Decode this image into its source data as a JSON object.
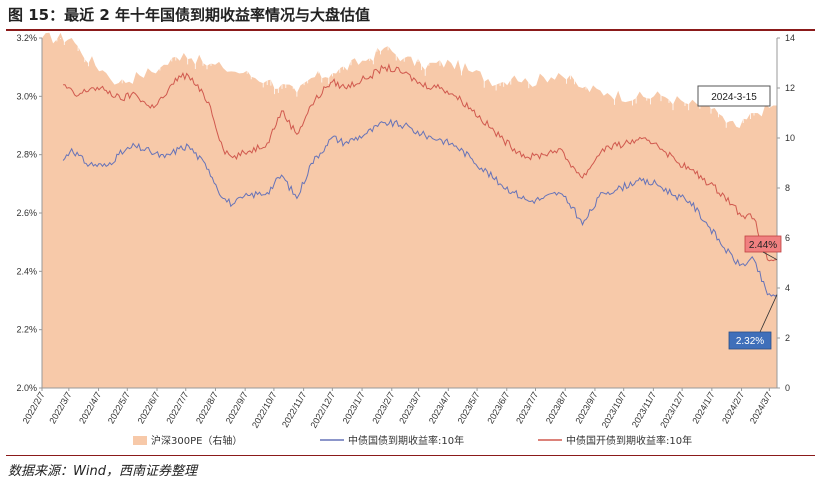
{
  "figure": {
    "title": "图 15：最近 2 年十年国债到期收益率情况与大盘估值",
    "source": "数据来源：Wind，西南证券整理"
  },
  "chart_data": {
    "type": "area+line",
    "x_range": [
      "2022-02-07",
      "2024-03-15"
    ],
    "x_tick_labels": [
      "2022/2/7",
      "2022/3/7",
      "2022/4/7",
      "2022/5/7",
      "2022/6/7",
      "2022/7/7",
      "2022/8/7",
      "2022/9/7",
      "2022/10/7",
      "2022/11/7",
      "2022/12/7",
      "2023/1/7",
      "2023/2/7",
      "2023/3/7",
      "2023/4/7",
      "2023/5/7",
      "2023/6/7",
      "2023/7/7",
      "2023/8/7",
      "2023/9/7",
      "2023/10/7",
      "2023/11/7",
      "2023/12/7",
      "2024/1/7",
      "2024/2/7",
      "2024/3/7"
    ],
    "y_left": {
      "min": 2.0,
      "max": 3.2,
      "tick_labels": [
        "2.0%",
        "2.2%",
        "2.4%",
        "2.6%",
        "2.8%",
        "3.0%",
        "3.2%"
      ]
    },
    "y_right": {
      "min": 0,
      "max": 14,
      "tick_labels": [
        "0",
        "2",
        "4",
        "6",
        "8",
        "10",
        "12",
        "14"
      ]
    },
    "series": [
      {
        "name": "沪深300PE（右轴）",
        "kind": "area",
        "axis": "right",
        "color": "#f7c9a9",
        "points": [
          [
            "2022-02-07",
            14.0
          ],
          [
            "2022-03-10",
            14.0
          ],
          [
            "2022-03-20",
            13.4
          ],
          [
            "2022-04-15",
            12.6
          ],
          [
            "2022-04-28",
            12.2
          ],
          [
            "2022-05-20",
            12.5
          ],
          [
            "2022-06-10",
            12.8
          ],
          [
            "2022-07-05",
            13.4
          ],
          [
            "2022-07-25",
            13.0
          ],
          [
            "2022-08-15",
            12.8
          ],
          [
            "2022-09-05",
            12.6
          ],
          [
            "2022-09-30",
            12.3
          ],
          [
            "2022-10-31",
            11.8
          ],
          [
            "2022-11-15",
            12.4
          ],
          [
            "2022-12-07",
            12.6
          ],
          [
            "2023-01-15",
            13.2
          ],
          [
            "2023-01-30",
            13.6
          ],
          [
            "2023-02-20",
            13.2
          ],
          [
            "2023-03-10",
            12.9
          ],
          [
            "2023-04-10",
            13.0
          ],
          [
            "2023-04-28",
            12.7
          ],
          [
            "2023-05-31",
            12.2
          ],
          [
            "2023-06-15",
            12.5
          ],
          [
            "2023-06-30",
            12.2
          ],
          [
            "2023-07-31",
            12.6
          ],
          [
            "2023-08-25",
            12.0
          ],
          [
            "2023-09-20",
            11.8
          ],
          [
            "2023-10-20",
            11.6
          ],
          [
            "2023-11-15",
            11.7
          ],
          [
            "2023-12-10",
            11.4
          ],
          [
            "2024-01-10",
            11.2
          ],
          [
            "2024-01-22",
            10.6
          ],
          [
            "2024-02-05",
            10.4
          ],
          [
            "2024-02-20",
            11.0
          ],
          [
            "2024-03-15",
            11.3
          ]
        ]
      },
      {
        "name": "中债国债到期收益率:10年",
        "kind": "line",
        "axis": "left",
        "color": "#6673b8",
        "points": [
          [
            "2022-03-01",
            2.78
          ],
          [
            "2022-03-10",
            2.82
          ],
          [
            "2022-03-25",
            2.77
          ],
          [
            "2022-04-15",
            2.76
          ],
          [
            "2022-04-28",
            2.8
          ],
          [
            "2022-05-15",
            2.83
          ],
          [
            "2022-05-31",
            2.81
          ],
          [
            "2022-06-15",
            2.79
          ],
          [
            "2022-06-30",
            2.82
          ],
          [
            "2022-07-10",
            2.83
          ],
          [
            "2022-07-31",
            2.75
          ],
          [
            "2022-08-15",
            2.65
          ],
          [
            "2022-08-25",
            2.63
          ],
          [
            "2022-09-10",
            2.66
          ],
          [
            "2022-09-30",
            2.67
          ],
          [
            "2022-10-15",
            2.73
          ],
          [
            "2022-10-31",
            2.65
          ],
          [
            "2022-11-15",
            2.77
          ],
          [
            "2022-11-30",
            2.83
          ],
          [
            "2022-12-07",
            2.86
          ],
          [
            "2022-12-20",
            2.84
          ],
          [
            "2023-01-10",
            2.87
          ],
          [
            "2023-01-31",
            2.91
          ],
          [
            "2023-02-20",
            2.9
          ],
          [
            "2023-03-10",
            2.87
          ],
          [
            "2023-03-31",
            2.85
          ],
          [
            "2023-04-15",
            2.83
          ],
          [
            "2023-04-30",
            2.79
          ],
          [
            "2023-05-31",
            2.7
          ],
          [
            "2023-06-15",
            2.67
          ],
          [
            "2023-06-30",
            2.64
          ],
          [
            "2023-07-15",
            2.65
          ],
          [
            "2023-07-31",
            2.67
          ],
          [
            "2023-08-15",
            2.62
          ],
          [
            "2023-08-25",
            2.56
          ],
          [
            "2023-09-15",
            2.67
          ],
          [
            "2023-09-30",
            2.68
          ],
          [
            "2023-10-20",
            2.71
          ],
          [
            "2023-11-10",
            2.7
          ],
          [
            "2023-11-30",
            2.66
          ],
          [
            "2023-12-15",
            2.64
          ],
          [
            "2024-01-05",
            2.55
          ],
          [
            "2024-01-20",
            2.48
          ],
          [
            "2024-02-05",
            2.42
          ],
          [
            "2024-02-20",
            2.44
          ],
          [
            "2024-03-05",
            2.32
          ],
          [
            "2024-03-15",
            2.32
          ]
        ]
      },
      {
        "name": "中债国开债到期收益率:10年",
        "kind": "line",
        "axis": "left",
        "color": "#d0594e",
        "points": [
          [
            "2022-03-01",
            3.04
          ],
          [
            "2022-03-15",
            3.0
          ],
          [
            "2022-03-31",
            3.03
          ],
          [
            "2022-04-15",
            3.02
          ],
          [
            "2022-04-30",
            2.99
          ],
          [
            "2022-05-15",
            3.01
          ],
          [
            "2022-05-31",
            2.96
          ],
          [
            "2022-06-15",
            3.0
          ],
          [
            "2022-06-30",
            3.07
          ],
          [
            "2022-07-10",
            3.07
          ],
          [
            "2022-07-31",
            2.98
          ],
          [
            "2022-08-15",
            2.82
          ],
          [
            "2022-08-25",
            2.79
          ],
          [
            "2022-09-10",
            2.81
          ],
          [
            "2022-09-30",
            2.84
          ],
          [
            "2022-10-15",
            2.95
          ],
          [
            "2022-10-31",
            2.87
          ],
          [
            "2022-11-15",
            2.97
          ],
          [
            "2022-11-30",
            3.03
          ],
          [
            "2022-12-07",
            3.05
          ],
          [
            "2022-12-20",
            3.03
          ],
          [
            "2023-01-10",
            3.06
          ],
          [
            "2023-01-31",
            3.1
          ],
          [
            "2023-02-20",
            3.08
          ],
          [
            "2023-03-10",
            3.04
          ],
          [
            "2023-03-31",
            3.03
          ],
          [
            "2023-04-15",
            3.0
          ],
          [
            "2023-04-30",
            2.96
          ],
          [
            "2023-05-31",
            2.86
          ],
          [
            "2023-06-15",
            2.82
          ],
          [
            "2023-06-30",
            2.79
          ],
          [
            "2023-07-15",
            2.8
          ],
          [
            "2023-07-31",
            2.82
          ],
          [
            "2023-08-15",
            2.76
          ],
          [
            "2023-08-25",
            2.72
          ],
          [
            "2023-09-15",
            2.82
          ],
          [
            "2023-09-30",
            2.83
          ],
          [
            "2023-10-20",
            2.85
          ],
          [
            "2023-11-10",
            2.84
          ],
          [
            "2023-11-30",
            2.78
          ],
          [
            "2023-12-15",
            2.75
          ],
          [
            "2024-01-05",
            2.7
          ],
          [
            "2024-01-20",
            2.66
          ],
          [
            "2024-02-05",
            2.6
          ],
          [
            "2024-02-20",
            2.58
          ],
          [
            "2024-03-05",
            2.44
          ],
          [
            "2024-03-15",
            2.44
          ]
        ]
      }
    ],
    "annotations": [
      {
        "text": "2024-3-15",
        "style": "white-box"
      },
      {
        "text": "2.44%",
        "style": "red-box",
        "target": [
          "2024-03-15",
          2.44
        ]
      },
      {
        "text": "2.32%",
        "style": "blue-box",
        "target": [
          "2024-03-15",
          2.32
        ]
      }
    ],
    "legend": {
      "position": "bottom"
    }
  }
}
